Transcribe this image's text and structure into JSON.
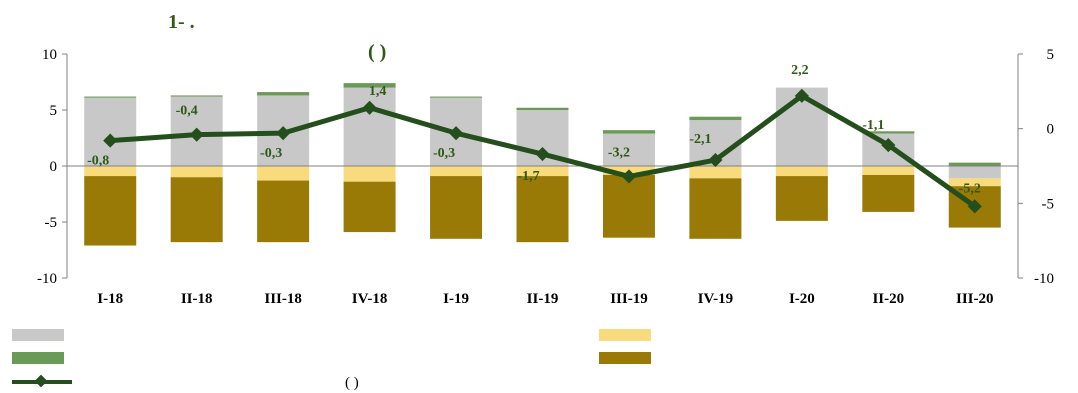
{
  "title": {
    "line1": "1-                      .",
    "line2": "(                                    )"
  },
  "legend_note": "(                  )",
  "colors": {
    "grey": "#c8c8c8",
    "green": "#6a9a58",
    "yellow": "#f8db7c",
    "olive": "#9a7a06",
    "line": "#244f1c",
    "label": "#2f5a16"
  },
  "chart_data": {
    "type": "bar",
    "categories": [
      "I-18",
      "II-18",
      "III-18",
      "IV-18",
      "I-19",
      "II-19",
      "III-19",
      "IV-19",
      "I-20",
      "II-20",
      "III-20"
    ],
    "stacked": true,
    "left_axis": {
      "ylim": [
        -10,
        10
      ],
      "ticks": [
        -10,
        -5,
        0,
        5,
        10
      ]
    },
    "right_axis": {
      "ylim": [
        -10,
        5
      ],
      "ticks": [
        -10,
        -5,
        0,
        5
      ]
    },
    "series": [
      {
        "key": "grey",
        "axis": "left",
        "values": [
          6.1,
          6.2,
          6.3,
          7.0,
          6.1,
          5.0,
          2.9,
          4.1,
          7.0,
          2.9,
          -1.1
        ]
      },
      {
        "key": "green",
        "axis": "left",
        "values": [
          0.1,
          0.1,
          0.3,
          0.4,
          0.1,
          0.2,
          0.3,
          0.3,
          0.0,
          0.2,
          0.3
        ]
      },
      {
        "key": "yellow",
        "axis": "left",
        "values": [
          -0.9,
          -1.0,
          -1.3,
          -1.4,
          -0.9,
          -0.9,
          -0.8,
          -1.1,
          -0.9,
          -0.8,
          -0.7
        ]
      },
      {
        "key": "olive",
        "axis": "left",
        "values": [
          -6.2,
          -5.8,
          -5.5,
          -4.5,
          -5.6,
          -5.9,
          -5.6,
          -5.4,
          -4.0,
          -3.3,
          -3.7
        ]
      },
      {
        "key": "line",
        "axis": "right",
        "type": "line",
        "values": [
          -0.8,
          -0.4,
          -0.3,
          1.4,
          -0.3,
          -1.7,
          -3.2,
          -2.1,
          2.2,
          -1.1,
          -5.2
        ]
      }
    ],
    "data_labels": [
      "-0,8",
      "-0,4",
      "-0,3",
      "1,4",
      "-0,3",
      "-1,7",
      "-3,2",
      "-2,1",
      "2,2",
      "-1,1",
      "-5,2"
    ]
  }
}
